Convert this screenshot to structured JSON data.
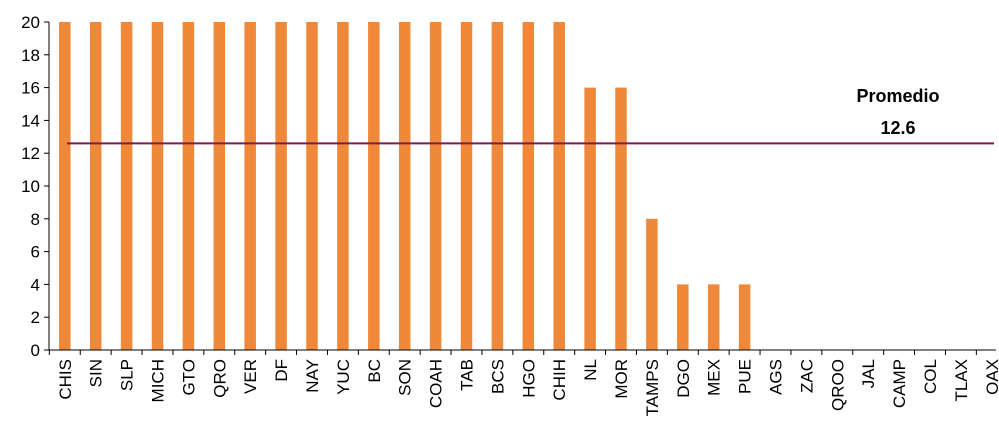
{
  "chart_data": {
    "type": "bar",
    "title": "",
    "xlabel": "",
    "ylabel": "",
    "ylim": [
      0,
      20
    ],
    "yticks": [
      0,
      2,
      4,
      6,
      8,
      10,
      12,
      14,
      16,
      18,
      20
    ],
    "grid": false,
    "legend": "none",
    "categories": [
      "CHIS",
      "SIN",
      "SLP",
      "MICH",
      "GTO",
      "QRO",
      "VER",
      "DF",
      "NAY",
      "YUC",
      "BC",
      "SON",
      "COAH",
      "TAB",
      "BCS",
      "HGO",
      "CHIH",
      "NL",
      "MOR",
      "TAMPS",
      "DGO",
      "MEX",
      "PUE",
      "AGS",
      "ZAC",
      "QROO",
      "JAL",
      "CAMP",
      "COL",
      "TLAX",
      "OAX"
    ],
    "values": [
      20,
      20,
      20,
      20,
      20,
      20,
      20,
      20,
      20,
      20,
      20,
      20,
      20,
      20,
      20,
      20,
      20,
      16,
      16,
      8,
      4,
      4,
      4,
      0,
      0,
      0,
      0,
      0,
      0,
      0,
      0
    ],
    "reference_line": {
      "label": "Promedio",
      "value": 12.6,
      "value_text": "12.6"
    },
    "colors": {
      "bar": "#F0883A",
      "reference_line": "#7B1E4E",
      "axis": "#000000"
    }
  }
}
